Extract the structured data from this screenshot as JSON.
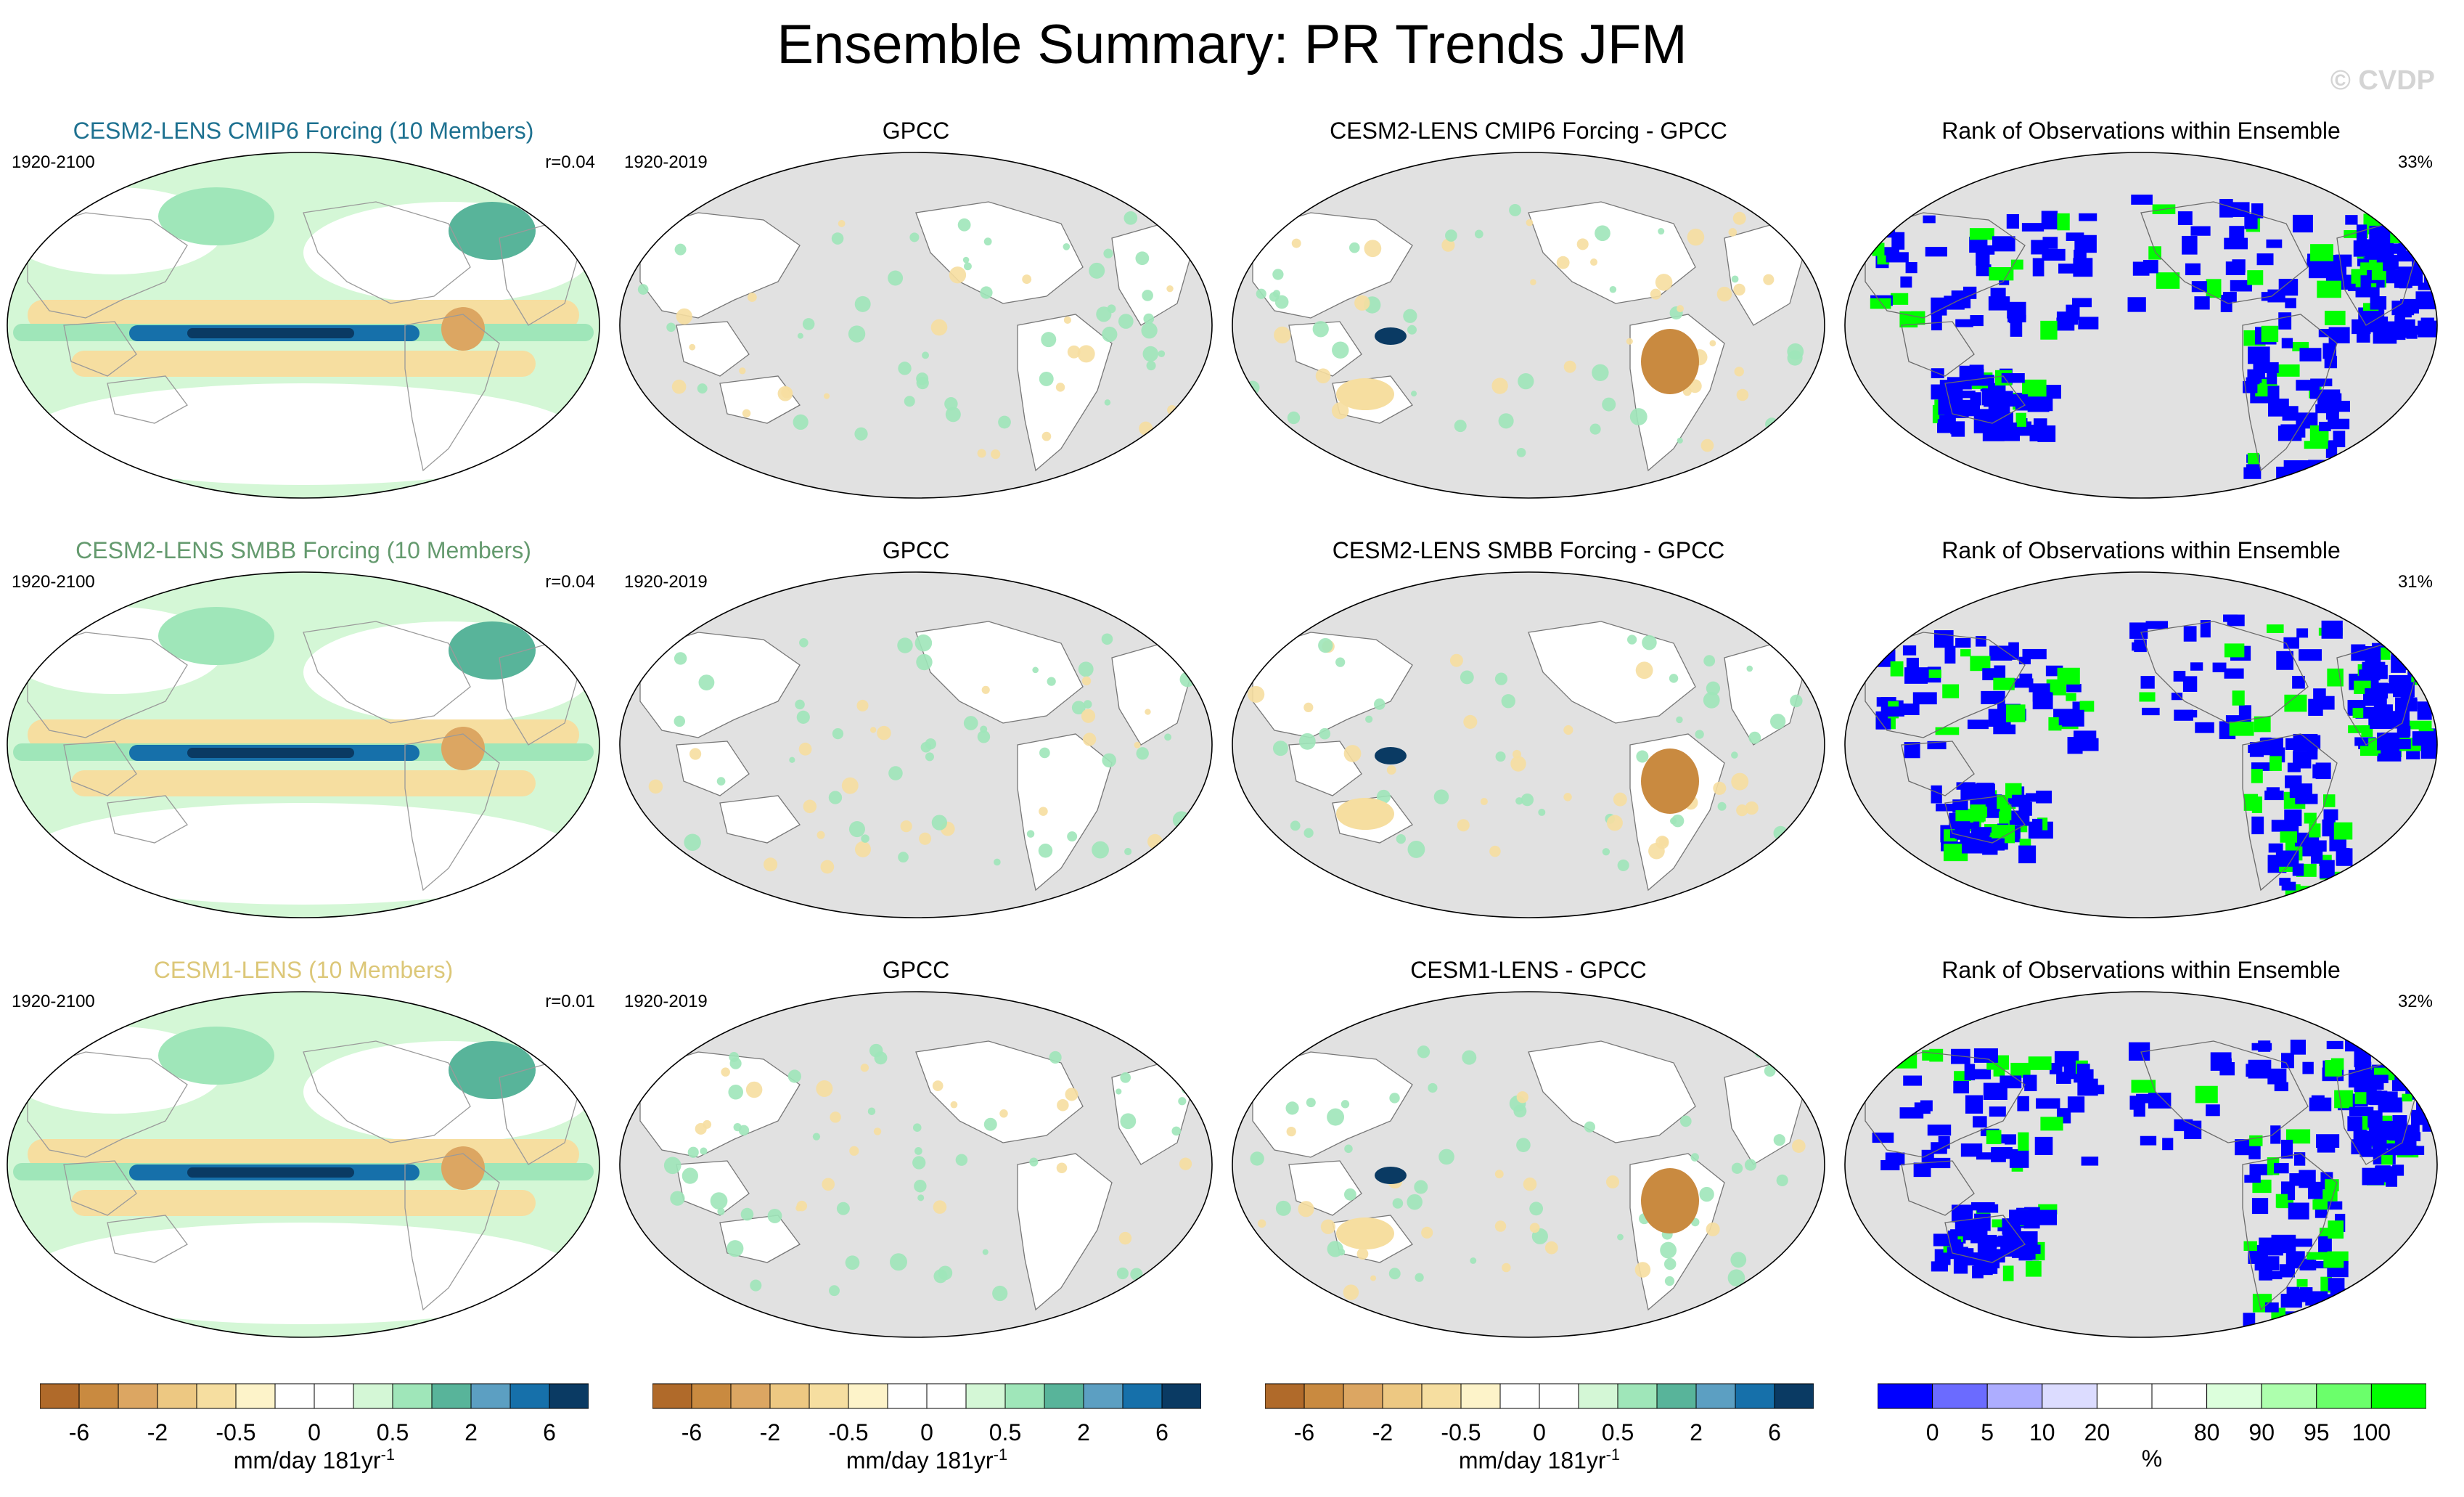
{
  "title": "Ensemble Summary: PR Trends JFM",
  "watermark": "© CVDP",
  "colors": {
    "ocean_gray": "#e1e1e1",
    "land_white": "#ffffff",
    "model_green": "#9fe6b9",
    "model_brown": "#e3a65f",
    "deep_blue": "#0a3a63",
    "rank_blue": "#0000ff",
    "rank_green": "#00ff00"
  },
  "rows": [
    {
      "panels": [
        {
          "title": "CESM2-LENS CMIP6 Forcing (10 Members)",
          "title_color": "#1e7190",
          "period": "1920-2100",
          "stat": "r=0.04",
          "kind": "model"
        },
        {
          "title": "GPCC",
          "title_color": "#000000",
          "period": "1920-2019",
          "stat": "",
          "kind": "obs"
        },
        {
          "title": "CESM2-LENS CMIP6 Forcing - GPCC",
          "title_color": "#000000",
          "period": "",
          "stat": "",
          "kind": "diff"
        },
        {
          "title": "Rank of Observations within Ensemble",
          "title_color": "#000000",
          "period": "",
          "stat": "33%",
          "kind": "rank"
        }
      ]
    },
    {
      "panels": [
        {
          "title": "CESM2-LENS SMBB Forcing (10 Members)",
          "title_color": "#649a6e",
          "period": "1920-2100",
          "stat": "r=0.04",
          "kind": "model"
        },
        {
          "title": "GPCC",
          "title_color": "#000000",
          "period": "1920-2019",
          "stat": "",
          "kind": "obs"
        },
        {
          "title": "CESM2-LENS SMBB Forcing - GPCC",
          "title_color": "#000000",
          "period": "",
          "stat": "",
          "kind": "diff"
        },
        {
          "title": "Rank of Observations within Ensemble",
          "title_color": "#000000",
          "period": "",
          "stat": "31%",
          "kind": "rank"
        }
      ]
    },
    {
      "panels": [
        {
          "title": "CESM1-LENS (10 Members)",
          "title_color": "#dcc778",
          "period": "1920-2100",
          "stat": "r=0.01",
          "kind": "model"
        },
        {
          "title": "GPCC",
          "title_color": "#000000",
          "period": "1920-2019",
          "stat": "",
          "kind": "obs"
        },
        {
          "title": "CESM1-LENS - GPCC",
          "title_color": "#000000",
          "period": "",
          "stat": "",
          "kind": "diff"
        },
        {
          "title": "Rank of Observations within Ensemble",
          "title_color": "#000000",
          "period": "",
          "stat": "32%",
          "kind": "rank"
        }
      ]
    }
  ],
  "colorbars": [
    {
      "units": "mm/day 181yr",
      "units_superscript": "-1",
      "colors": [
        "#b06a2a",
        "#c98a40",
        "#dca662",
        "#edc882",
        "#f6dea0",
        "#fdf3c9",
        "#ffffff",
        "#ffffff",
        "#d4f7d6",
        "#9fe6b9",
        "#58b49a",
        "#5c9fc2",
        "#1670aa",
        "#0a3a63"
      ],
      "tick_labels": [
        "-6",
        "-2",
        "-0.5",
        "0",
        "0.5",
        "2",
        "6"
      ],
      "tick_boundaries": [
        1,
        3,
        5,
        7,
        9,
        11,
        13
      ]
    },
    {
      "units": "mm/day 181yr",
      "units_superscript": "-1",
      "colors": [
        "#b06a2a",
        "#c98a40",
        "#dca662",
        "#edc882",
        "#f6dea0",
        "#fdf3c9",
        "#ffffff",
        "#ffffff",
        "#d4f7d6",
        "#9fe6b9",
        "#58b49a",
        "#5c9fc2",
        "#1670aa",
        "#0a3a63"
      ],
      "tick_labels": [
        "-6",
        "-2",
        "-0.5",
        "0",
        "0.5",
        "2",
        "6"
      ],
      "tick_boundaries": [
        1,
        3,
        5,
        7,
        9,
        11,
        13
      ]
    },
    {
      "units": "mm/day 181yr",
      "units_superscript": "-1",
      "colors": [
        "#b06a2a",
        "#c98a40",
        "#dca662",
        "#edc882",
        "#f6dea0",
        "#fdf3c9",
        "#ffffff",
        "#ffffff",
        "#d4f7d6",
        "#9fe6b9",
        "#58b49a",
        "#5c9fc2",
        "#1670aa",
        "#0a3a63"
      ],
      "tick_labels": [
        "-6",
        "-2",
        "-0.5",
        "0",
        "0.5",
        "2",
        "6"
      ],
      "tick_boundaries": [
        1,
        3,
        5,
        7,
        9,
        11,
        13
      ]
    },
    {
      "units": "%",
      "units_superscript": "",
      "colors": [
        "#0000ff",
        "#6b6bff",
        "#adadff",
        "#dcdcff",
        "#ffffff",
        "#ffffff",
        "#dcffdc",
        "#adffad",
        "#6bff6b",
        "#00ff00"
      ],
      "tick_labels": [
        "0",
        "5",
        "10",
        "20",
        "80",
        "90",
        "95",
        "100"
      ],
      "tick_boundaries": [
        1,
        2,
        3,
        4,
        6,
        7,
        8,
        9
      ]
    }
  ],
  "chart_data": {
    "type": "heatmap",
    "title": "Ensemble Summary: PR Trends JFM",
    "grid": "3 rows x 4 columns of global maps",
    "columns": [
      "model ensemble mean trend",
      "GPCC observed trend",
      "model minus GPCC",
      "rank of observations within ensemble"
    ],
    "trend_units": "mm/day 181yr-1",
    "trend_levels": [
      -6,
      -4,
      -2,
      -1,
      -0.5,
      -0.2,
      0,
      0.2,
      0.5,
      1,
      2,
      4,
      6
    ],
    "rank_levels": [
      0,
      5,
      10,
      20,
      80,
      90,
      95,
      100
    ],
    "rank_units": "%",
    "panels": [
      {
        "row": 1,
        "col": 1,
        "name": "CESM2-LENS CMIP6 Forcing (10 Members)",
        "period": "1920-2100",
        "pattern_correlation": 0.04
      },
      {
        "row": 2,
        "col": 1,
        "name": "CESM2-LENS SMBB Forcing (10 Members)",
        "period": "1920-2100",
        "pattern_correlation": 0.04
      },
      {
        "row": 3,
        "col": 1,
        "name": "CESM1-LENS (10 Members)",
        "period": "1920-2100",
        "pattern_correlation": 0.01
      },
      {
        "row": 1,
        "col": 4,
        "rank_stat_percent": 33
      },
      {
        "row": 2,
        "col": 4,
        "rank_stat_percent": 31
      },
      {
        "row": 3,
        "col": 4,
        "rank_stat_percent": 32
      }
    ]
  }
}
